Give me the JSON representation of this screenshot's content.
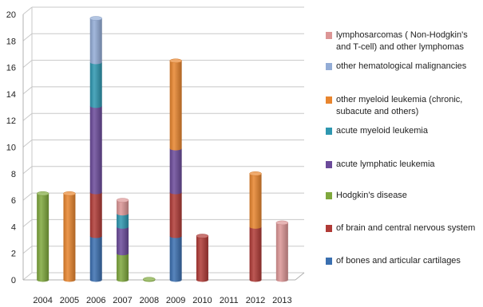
{
  "chart_data": {
    "type": "bar",
    "stacked": true,
    "style": "3d-cylinder",
    "categories": [
      "2004",
      "2005",
      "2006",
      "2007",
      "2008",
      "2009",
      "2010",
      "2011",
      "2012",
      "2013"
    ],
    "ylim": [
      0,
      20
    ],
    "yticks": [
      "0",
      "2",
      "4",
      "6",
      "8",
      "10",
      "12",
      "14",
      "16",
      "18",
      "20"
    ],
    "grid": true,
    "legend_position": "right",
    "title": "",
    "xlabel": "",
    "ylabel": "",
    "series": [
      {
        "name": "of bones and articular cartilages",
        "color": "#3a6fb0",
        "values": [
          0,
          0,
          3.3,
          0,
          0,
          3.3,
          0,
          0,
          0,
          0
        ]
      },
      {
        "name": "of brain and central nervous system",
        "color": "#b03a36",
        "values": [
          0,
          0,
          3.3,
          0,
          0,
          3.3,
          3.3,
          0,
          4,
          0
        ]
      },
      {
        "name": "Hodgkin's disease",
        "color": "#7fa83d",
        "values": [
          6.5,
          0,
          0,
          2,
          0.05,
          0,
          0,
          0,
          0,
          0
        ]
      },
      {
        "name": "acute lymphatic leukemia",
        "color": "#6b4a9a",
        "values": [
          0,
          0,
          6.5,
          2,
          0,
          3.3,
          0,
          0,
          0,
          0
        ]
      },
      {
        "name": "acute myeloid leukemia",
        "color": "#2e97b0",
        "values": [
          0,
          0,
          3.3,
          1,
          0,
          0,
          0,
          0,
          0,
          0
        ]
      },
      {
        "name": "other myeloid leukemia (chronic, subacute and others)",
        "color": "#e8852e",
        "values": [
          0,
          6.5,
          0,
          0,
          0,
          6.6,
          0,
          0,
          4,
          0
        ]
      },
      {
        "name": "other hematological malignancies",
        "color": "#93acd6",
        "values": [
          0,
          0,
          3.3,
          0,
          0,
          0,
          0,
          0,
          0,
          0
        ]
      },
      {
        "name": "lymphosarcomas ( Non-Hodgkin's and T-cell) and other lymphomas",
        "color": "#dc9595",
        "values": [
          0,
          0,
          0,
          1,
          0,
          0,
          0,
          0,
          0,
          4.3
        ]
      }
    ]
  }
}
